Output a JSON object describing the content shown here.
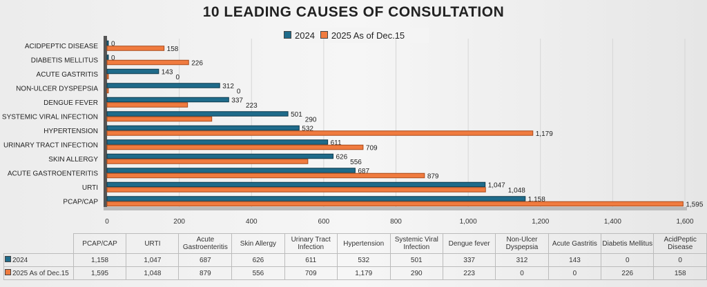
{
  "chart_data": {
    "type": "bar",
    "title": "10 LEADING CAUSES OF CONSULTATION",
    "categories": [
      "PCAP/CAP",
      "URTI",
      "ACUTE GASTROENTERITIS",
      "SKIN ALLERGY",
      "URINARY TRACT INFECTION",
      "HYPERTENSION",
      "SYSTEMIC VIRAL INFECTION",
      "DENGUE FEVER",
      "NON-ULCER DYSPEPSIA",
      "ACUTE GASTRITIS",
      "DIABETIS MELLITUS",
      "ACIDPEPTIC DISEASE"
    ],
    "table_headers": [
      "PCAP/CAP",
      "URTI",
      "Acute Gastroenteritis",
      "Skin Allergy",
      "Urinary Tract Infection",
      "Hypertension",
      "Systemic Viral Infection",
      "Dengue fever",
      "Non-Ulcer Dyspepsia",
      "Acute Gastritis",
      "Diabetis Mellitus",
      "AcidPeptic Disease"
    ],
    "series": [
      {
        "name": "2024",
        "color": "#1f6b8a",
        "values": [
          1158,
          1047,
          687,
          626,
          611,
          532,
          501,
          337,
          312,
          143,
          0,
          0
        ],
        "labels": [
          "1,158",
          "1,047",
          "687",
          "626",
          "611",
          "532",
          "501",
          "337",
          "312",
          "143",
          "0",
          "0"
        ]
      },
      {
        "name": "2025 As of Dec.15",
        "color": "#f07b3f",
        "values": [
          1595,
          1048,
          879,
          556,
          709,
          1179,
          290,
          223,
          0,
          0,
          226,
          158
        ],
        "labels": [
          "1,595",
          "1,048",
          "879",
          "556",
          "709",
          "1,179",
          "290",
          "223",
          "0",
          "0",
          "226",
          "158"
        ]
      }
    ],
    "xlim": [
      0,
      1600
    ],
    "xticks": [
      "0",
      "200",
      "400",
      "600",
      "800",
      "1,000",
      "1,200",
      "1,400",
      "1,600"
    ],
    "grid": true,
    "legend": "top"
  }
}
